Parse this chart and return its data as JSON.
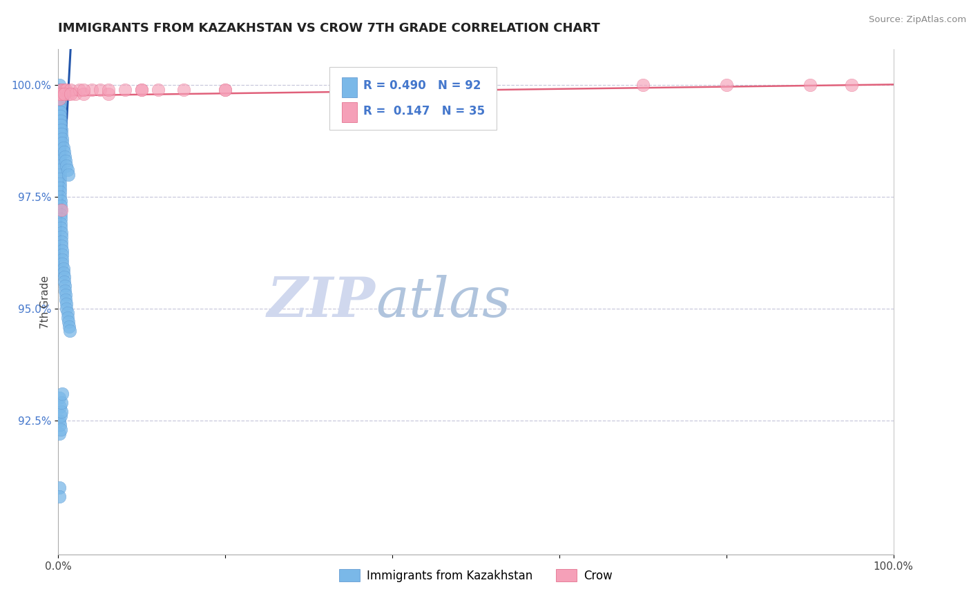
{
  "title": "IMMIGRANTS FROM KAZAKHSTAN VS CROW 7TH GRADE CORRELATION CHART",
  "source_text": "Source: ZipAtlas.com",
  "ylabel": "7th Grade",
  "x_min": 0.0,
  "x_max": 1.0,
  "y_min": 0.895,
  "y_max": 1.008,
  "y_tick_values": [
    0.925,
    0.95,
    0.975,
    1.0
  ],
  "y_tick_labels": [
    "92.5%",
    "95.0%",
    "97.5%",
    "100.0%"
  ],
  "blue_color": "#7ab8e8",
  "blue_edge_color": "#5590cc",
  "pink_color": "#f5a0b8",
  "pink_edge_color": "#e06080",
  "blue_line_color": "#2255aa",
  "pink_line_color": "#e0607a",
  "grid_color": "#c8c8dc",
  "background_color": "#ffffff",
  "watermark_zip_color": "#d0d8ee",
  "watermark_atlas_color": "#b0c4dd",
  "legend_r1": "R = 0.490",
  "legend_n1": "N = 92",
  "legend_r2": "R =  0.147",
  "legend_n2": "N = 35",
  "legend_label1": "Immigrants from Kazakhstan",
  "legend_label2": "Crow",
  "title_color": "#222222",
  "title_fontsize": 13,
  "tick_color": "#4477cc",
  "axis_label_color": "#444444",
  "blue_x": [
    0.001,
    0.001,
    0.001,
    0.001,
    0.001,
    0.001,
    0.001,
    0.001,
    0.001,
    0.001,
    0.001,
    0.001,
    0.001,
    0.001,
    0.001,
    0.001,
    0.001,
    0.001,
    0.001,
    0.001,
    0.002,
    0.002,
    0.002,
    0.002,
    0.002,
    0.002,
    0.002,
    0.002,
    0.002,
    0.002,
    0.003,
    0.003,
    0.003,
    0.003,
    0.003,
    0.003,
    0.003,
    0.004,
    0.004,
    0.004,
    0.004,
    0.005,
    0.005,
    0.005,
    0.005,
    0.006,
    0.006,
    0.007,
    0.007,
    0.008,
    0.008,
    0.009,
    0.009,
    0.01,
    0.01,
    0.011,
    0.011,
    0.012,
    0.013,
    0.014,
    0.001,
    0.001,
    0.001,
    0.001,
    0.001,
    0.002,
    0.002,
    0.003,
    0.003,
    0.004,
    0.004,
    0.005,
    0.005,
    0.006,
    0.007,
    0.008,
    0.009,
    0.01,
    0.011,
    0.012,
    0.001,
    0.001,
    0.001,
    0.002,
    0.002,
    0.003,
    0.003,
    0.004,
    0.004,
    0.005,
    0.001,
    0.001
  ],
  "blue_y": [
    1.0,
    0.999,
    0.999,
    0.998,
    0.998,
    0.997,
    0.997,
    0.996,
    0.996,
    0.995,
    0.994,
    0.993,
    0.992,
    0.991,
    0.99,
    0.989,
    0.988,
    0.987,
    0.986,
    0.985,
    0.984,
    0.983,
    0.982,
    0.981,
    0.98,
    0.979,
    0.978,
    0.977,
    0.976,
    0.975,
    0.974,
    0.973,
    0.972,
    0.971,
    0.97,
    0.969,
    0.968,
    0.967,
    0.966,
    0.965,
    0.964,
    0.963,
    0.962,
    0.961,
    0.96,
    0.959,
    0.958,
    0.957,
    0.956,
    0.955,
    0.954,
    0.953,
    0.952,
    0.951,
    0.95,
    0.949,
    0.948,
    0.947,
    0.946,
    0.945,
    0.999,
    0.998,
    0.997,
    0.996,
    0.995,
    0.994,
    0.993,
    0.992,
    0.991,
    0.99,
    0.989,
    0.988,
    0.987,
    0.986,
    0.985,
    0.984,
    0.983,
    0.982,
    0.981,
    0.98,
    0.93,
    0.925,
    0.922,
    0.928,
    0.924,
    0.926,
    0.923,
    0.927,
    0.929,
    0.931,
    0.91,
    0.908
  ],
  "pink_x": [
    0.001,
    0.002,
    0.003,
    0.005,
    0.006,
    0.008,
    0.01,
    0.012,
    0.015,
    0.02,
    0.025,
    0.03,
    0.04,
    0.05,
    0.06,
    0.08,
    0.1,
    0.12,
    0.15,
    0.2,
    0.001,
    0.003,
    0.007,
    0.015,
    0.03,
    0.06,
    0.1,
    0.2,
    0.35,
    0.5,
    0.7,
    0.8,
    0.9,
    0.95,
    0.004
  ],
  "pink_y": [
    0.998,
    0.998,
    0.999,
    0.999,
    0.998,
    0.999,
    0.999,
    0.998,
    0.999,
    0.998,
    0.999,
    0.998,
    0.999,
    0.999,
    0.998,
    0.999,
    0.999,
    0.999,
    0.999,
    0.999,
    0.997,
    0.998,
    0.998,
    0.998,
    0.999,
    0.999,
    0.999,
    0.999,
    0.999,
    1.0,
    1.0,
    1.0,
    1.0,
    1.0,
    0.972
  ]
}
